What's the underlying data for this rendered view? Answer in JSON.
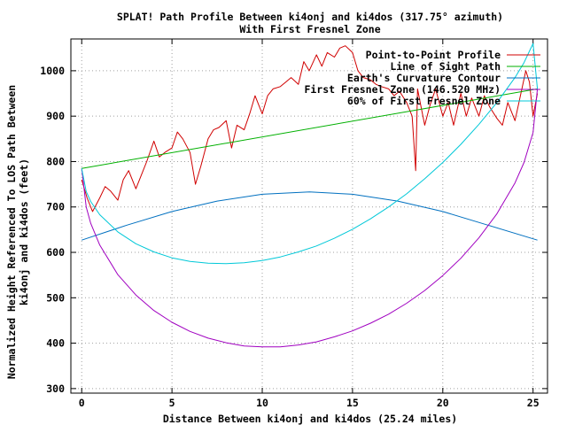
{
  "chart_data": {
    "type": "line",
    "title_lines": [
      "SPLAT! Path Profile Between ki4onj and ki4dos (317.75° azimuth)",
      "With First Fresnel Zone"
    ],
    "xlabel": "Distance Between ki4onj and ki4dos (25.24 miles)",
    "ylabel_lines": [
      "Normalized Height Referenced To LOS Path Between",
      "ki4onj and ki4dos (feet)"
    ],
    "xlim": [
      -0.6,
      25.8
    ],
    "ylim": [
      290,
      1070
    ],
    "xticks": [
      0,
      5,
      10,
      15,
      20,
      25
    ],
    "yticks": [
      300,
      400,
      500,
      600,
      700,
      800,
      900,
      1000
    ],
    "grid": true,
    "legend_position": "top-right",
    "path_length_miles": 25.24,
    "series": [
      {
        "name": "Point-to-Point Profile",
        "color": "#d00000",
        "x": [
          0,
          0.3,
          0.6,
          1.0,
          1.3,
          1.6,
          2.0,
          2.3,
          2.6,
          3.0,
          3.3,
          3.6,
          4.0,
          4.3,
          4.6,
          5.0,
          5.3,
          5.6,
          6.0,
          6.3,
          6.6,
          7.0,
          7.3,
          7.6,
          8.0,
          8.3,
          8.6,
          9.0,
          9.3,
          9.6,
          10.0,
          10.3,
          10.6,
          11.0,
          11.3,
          11.6,
          12.0,
          12.3,
          12.6,
          13.0,
          13.3,
          13.6,
          14.0,
          14.3,
          14.6,
          15.0,
          15.3,
          15.6,
          16.0,
          16.3,
          16.6,
          17.0,
          17.3,
          17.6,
          18.0,
          18.3,
          18.5,
          18.6,
          18.8,
          19.0,
          19.3,
          19.6,
          20.0,
          20.3,
          20.6,
          21.0,
          21.3,
          21.6,
          22.0,
          22.3,
          22.6,
          23.0,
          23.3,
          23.6,
          24.0,
          24.3,
          24.6,
          24.8,
          25.0,
          25.24
        ],
        "y": [
          760,
          720,
          690,
          720,
          745,
          735,
          715,
          760,
          780,
          740,
          770,
          800,
          845,
          810,
          820,
          830,
          865,
          850,
          820,
          750,
          790,
          850,
          870,
          875,
          890,
          830,
          880,
          870,
          905,
          945,
          905,
          945,
          960,
          965,
          975,
          985,
          970,
          1020,
          1000,
          1035,
          1010,
          1040,
          1030,
          1050,
          1055,
          1040,
          1000,
          985,
          980,
          970,
          965,
          960,
          945,
          955,
          930,
          900,
          780,
          960,
          920,
          880,
          925,
          960,
          900,
          930,
          880,
          950,
          900,
          940,
          900,
          945,
          920,
          895,
          880,
          930,
          890,
          945,
          1000,
          975,
          900,
          950
        ]
      },
      {
        "name": "Line of Sight Path",
        "color": "#00b000",
        "x": [
          0,
          25.24
        ],
        "y": [
          785,
          960
        ]
      },
      {
        "name": "Earth's Curvature Contour",
        "color": "#0070c0",
        "x": [
          0,
          2.5,
          5.0,
          7.5,
          10.0,
          12.62,
          15.0,
          17.5,
          20.0,
          22.5,
          25.24
        ],
        "y": [
          627,
          660,
          690,
          713,
          728,
          733,
          728,
          713,
          690,
          660,
          627
        ]
      },
      {
        "name": "First Fresnel Zone (146.520 MHz)",
        "color": "#a000c0",
        "x": [
          0,
          0.25,
          0.5,
          1.0,
          2.0,
          3.0,
          4.0,
          5.0,
          6.0,
          7.0,
          8.0,
          9.0,
          10.0,
          11.0,
          12.0,
          13.0,
          14.0,
          15.0,
          16.0,
          17.0,
          18.0,
          19.0,
          20.0,
          21.0,
          22.0,
          23.0,
          24.0,
          24.5,
          25.0,
          25.24
        ],
        "y": [
          785,
          700,
          664,
          616,
          551,
          506,
          472,
          446,
          426,
          411,
          401,
          394,
          392,
          392,
          396,
          403,
          414,
          427,
          444,
          464,
          488,
          516,
          549,
          587,
          632,
          685,
          753,
          798,
          864,
          960
        ]
      },
      {
        "name": "60% of First Fresnel Zone",
        "color": "#00c8d8",
        "x": [
          0,
          0.25,
          0.5,
          1.0,
          2.0,
          3.0,
          4.0,
          5.0,
          6.0,
          7.0,
          8.0,
          9.0,
          10.0,
          11.0,
          12.0,
          13.0,
          14.0,
          15.0,
          16.0,
          17.0,
          18.0,
          19.0,
          20.0,
          21.0,
          22.0,
          23.0,
          24.0,
          24.5,
          25.0,
          25.24
        ],
        "y": [
          785,
          734,
          712,
          683,
          645,
          619,
          601,
          588,
          580,
          576,
          575,
          577,
          582,
          590,
          601,
          614,
          631,
          651,
          674,
          700,
          729,
          762,
          798,
          838,
          882,
          930,
          985,
          1018,
          1060,
          960
        ]
      }
    ]
  }
}
